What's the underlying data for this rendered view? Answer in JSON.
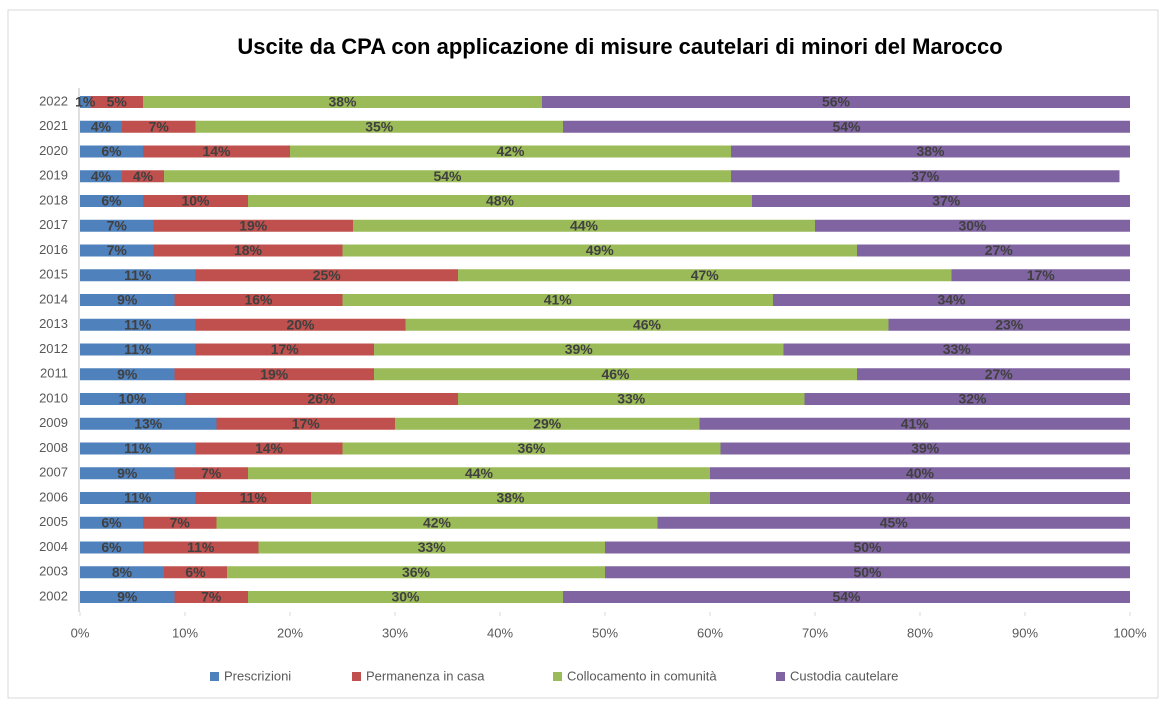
{
  "chart_data": {
    "type": "stacked-barh",
    "title": "Uscite da CPA con applicazione di misure cautelari di minori del Marocco",
    "categories": [
      "2002",
      "2003",
      "2004",
      "2005",
      "2006",
      "2007",
      "2008",
      "2009",
      "2010",
      "2011",
      "2012",
      "2013",
      "2014",
      "2015",
      "2016",
      "2017",
      "2018",
      "2019",
      "2020",
      "2021",
      "2022"
    ],
    "series": [
      {
        "name": "Prescrizioni",
        "color": "#4f81bd",
        "values": [
          9,
          8,
          6,
          6,
          11,
          9,
          11,
          13,
          10,
          9,
          11,
          11,
          9,
          11,
          7,
          7,
          6,
          4,
          6,
          4,
          1
        ],
        "value_labels": [
          "9%",
          "8%",
          "6%",
          "6%",
          "11%",
          "9%",
          "11%",
          "13%",
          "10%",
          "9%",
          "11%",
          "11%",
          "9%",
          "11%",
          "7%",
          "7%",
          "6%",
          "4%",
          "6%",
          "4%",
          "1%"
        ]
      },
      {
        "name": "Permanenza in casa",
        "color": "#c0504d",
        "values": [
          7,
          6,
          11,
          7,
          11,
          7,
          14,
          17,
          26,
          19,
          17,
          20,
          16,
          25,
          18,
          19,
          10,
          4,
          14,
          7,
          5
        ],
        "value_labels": [
          "7%",
          "6%",
          "11%",
          "7%",
          "11%",
          "7%",
          "14%",
          "17%",
          "26%",
          "19%",
          "17%",
          "20%",
          "16%",
          "25%",
          "18%",
          "19%",
          "10%",
          "4%",
          "14%",
          "7%",
          "5%"
        ]
      },
      {
        "name": "Collocamento in comunità",
        "color": "#9bbb59",
        "values": [
          30,
          36,
          33,
          42,
          38,
          44,
          36,
          29,
          33,
          46,
          39,
          46,
          41,
          47,
          49,
          44,
          48,
          54,
          42,
          35,
          38
        ],
        "value_labels": [
          "30%",
          "36%",
          "33%",
          "42%",
          "38%",
          "44%",
          "36%",
          "29%",
          "33%",
          "46%",
          "39%",
          "46%",
          "41%",
          "47%",
          "49%",
          "44%",
          "48%",
          "54%",
          "42%",
          "35%",
          "38%"
        ]
      },
      {
        "name": "Custodia cautelare",
        "color": "#8064a2",
        "values": [
          54,
          50,
          50,
          45,
          40,
          40,
          39,
          41,
          32,
          27,
          33,
          23,
          34,
          17,
          27,
          30,
          37,
          37,
          38,
          54,
          56
        ],
        "value_labels": [
          "54%",
          "50%",
          "50%",
          "45%",
          "40%",
          "40%",
          "39%",
          "41%",
          "32%",
          "27%",
          "33%",
          "23%",
          "34%",
          "17%",
          "27%",
          "30%",
          "37%",
          "37%",
          "38%",
          "54%",
          "56%"
        ]
      }
    ],
    "xlim": [
      0,
      100
    ],
    "xticks": [
      {
        "value": 0,
        "label": "0%"
      },
      {
        "value": 10,
        "label": "10%"
      },
      {
        "value": 20,
        "label": "20%"
      },
      {
        "value": 30,
        "label": "30%"
      },
      {
        "value": 40,
        "label": "40%"
      },
      {
        "value": 50,
        "label": "50%"
      },
      {
        "value": 60,
        "label": "60%"
      },
      {
        "value": 70,
        "label": "70%"
      },
      {
        "value": 80,
        "label": "80%"
      },
      {
        "value": 90,
        "label": "90%"
      },
      {
        "value": 100,
        "label": "100%"
      }
    ],
    "legend": "bottom"
  }
}
